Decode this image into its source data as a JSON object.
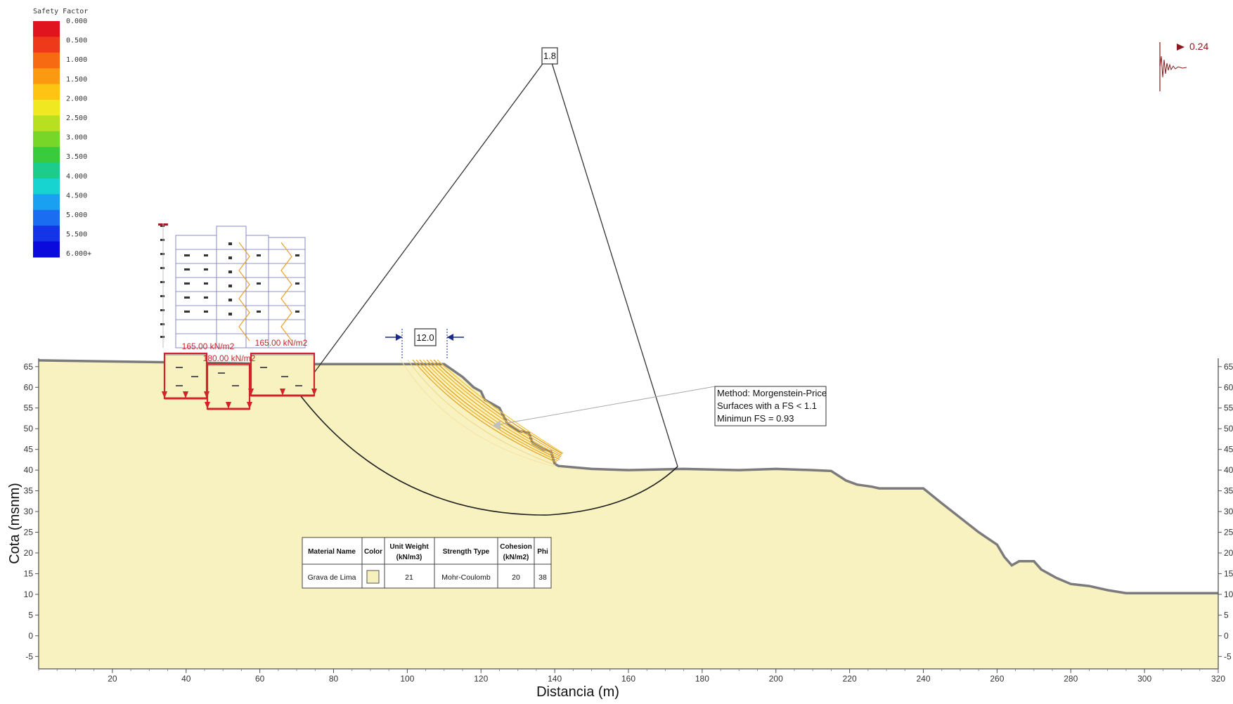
{
  "legend": {
    "title": "Safety Factor",
    "entries": [
      "0.000",
      "0.500",
      "1.000",
      "1.500",
      "2.000",
      "2.500",
      "3.000",
      "3.500",
      "4.000",
      "4.500",
      "5.000",
      "5.500",
      "6.000+"
    ],
    "colors": [
      "#e0141e",
      "#ee3a1a",
      "#f76a12",
      "#fb9a10",
      "#fdc414",
      "#f0e820",
      "#b8e020",
      "#78d628",
      "#38cc3c",
      "#1ccc8c",
      "#18d4d0",
      "#1aa0f0",
      "#1a6cf0",
      "#1434e8",
      "#0a0adc"
    ]
  },
  "seismic": {
    "label": "0.24"
  },
  "axes": {
    "xlabel": "Distancia (m)",
    "ylabel": "Cota (msnm)",
    "x_ticks": [
      "20",
      "40",
      "60",
      "80",
      "100",
      "120",
      "140",
      "160",
      "180",
      "200",
      "220",
      "240",
      "260",
      "280",
      "300",
      "320"
    ],
    "y_ticks": [
      "65",
      "60",
      "55",
      "50",
      "45",
      "40",
      "35",
      "30",
      "25",
      "20",
      "15",
      "10",
      "5",
      "0",
      "-5"
    ],
    "x_range": [
      0,
      320
    ],
    "y_range": [
      -8,
      67
    ]
  },
  "loads": {
    "left": "165.00 kN/m2",
    "center": "180.00 kN/m2",
    "right": "165.00 kN/m2"
  },
  "grid_label": "1.8",
  "tension_crack_label": "12.0",
  "analysis_box": {
    "line1": "Method: Morgenstein-Price",
    "line2": "Surfaces with a  FS < 1.1",
    "line3": "Minimun FS = 0.93"
  },
  "material_table": {
    "headers": [
      "Material Name",
      "Color",
      "Unit Weight",
      "(kN/m3)",
      "Strength Type",
      "Cohesion",
      "(kN/m2)",
      "Phi"
    ],
    "row": {
      "name": "Grava de Lima",
      "color": "#f6f0bc",
      "unit_weight": "21",
      "strength_type": "Mohr-Coulomb",
      "cohesion": "20",
      "phi": "38"
    }
  },
  "chart_data": {
    "type": "area",
    "title": "",
    "xlabel": "Distancia (m)",
    "ylabel": "Cota (msnm)",
    "xlim": [
      0,
      320
    ],
    "ylim": [
      -8,
      67
    ],
    "ground_surface": {
      "x": [
        0,
        70,
        101,
        110,
        115,
        118,
        120,
        121,
        125,
        127,
        129,
        130,
        133,
        134,
        137,
        139,
        140,
        141,
        150,
        160,
        175,
        190,
        200,
        210,
        215,
        219,
        222,
        226,
        228,
        240,
        245,
        255,
        260,
        262,
        264,
        266,
        270,
        272,
        276,
        280,
        285,
        290,
        295,
        310,
        320
      ],
      "y": [
        66.5,
        65.6,
        65.6,
        65.6,
        62.5,
        60.0,
        59.0,
        57.0,
        55.0,
        51.5,
        50.0,
        49.5,
        49.0,
        46.5,
        45.0,
        44.5,
        41.5,
        41.0,
        40.3,
        40.0,
        40.3,
        40.0,
        40.3,
        40.0,
        39.8,
        37.5,
        36.5,
        36.0,
        35.6,
        35.6,
        32.0,
        25.0,
        22.0,
        19.0,
        17.0,
        18.0,
        18.0,
        16.0,
        14.0,
        12.5,
        12.0,
        11.0,
        10.3,
        10.3,
        10.3
      ]
    },
    "critical_slip_circle": {
      "entry_x": 70,
      "exit_x": 174,
      "lowest_y": 34
    },
    "slip_center": {
      "x": 139,
      "y": 139
    }
  }
}
